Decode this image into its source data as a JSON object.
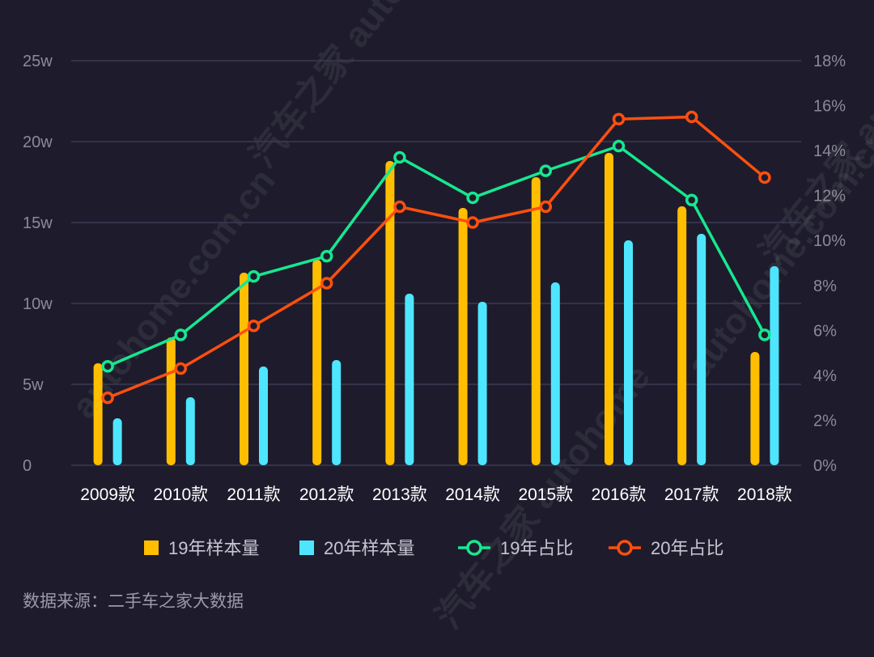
{
  "chart_data": {
    "type": "bar",
    "categories": [
      "2009款",
      "2010款",
      "2011款",
      "2012款",
      "2013款",
      "2014款",
      "2015款",
      "2016款",
      "2017款",
      "2018款"
    ],
    "y_left": {
      "ticks": [
        "0",
        "5w",
        "10w",
        "15w",
        "20w",
        "25w"
      ],
      "range": [
        0,
        25
      ]
    },
    "y_right": {
      "ticks": [
        "0%",
        "2%",
        "4%",
        "6%",
        "8%",
        "10%",
        "12%",
        "14%",
        "16%",
        "18%"
      ],
      "range": [
        0,
        18
      ]
    },
    "grid": true,
    "legend_position": "bottom",
    "series": [
      {
        "name": "19年样本量",
        "type": "bar",
        "axis": "left",
        "color": "#ffbe00",
        "values": [
          6.3,
          7.9,
          11.9,
          12.7,
          18.8,
          15.9,
          17.8,
          19.3,
          16.0,
          7.0
        ]
      },
      {
        "name": "20年样本量",
        "type": "bar",
        "axis": "left",
        "color": "#4ee6ff",
        "values": [
          2.9,
          4.2,
          6.1,
          6.5,
          10.6,
          10.1,
          11.3,
          13.9,
          14.3,
          12.3
        ]
      },
      {
        "name": "19年占比",
        "type": "line",
        "axis": "right",
        "color": "#16e890",
        "values": [
          4.4,
          5.8,
          8.4,
          9.3,
          13.7,
          11.9,
          13.1,
          14.2,
          11.8,
          5.8
        ]
      },
      {
        "name": "20年占比",
        "type": "line",
        "axis": "right",
        "color": "#ff4f0e",
        "values": [
          3.0,
          4.3,
          6.2,
          8.1,
          11.5,
          10.8,
          11.5,
          15.4,
          15.5,
          12.8
        ]
      }
    ]
  },
  "source_note": "数据来源：二手车之家大数据",
  "watermarks": [
    "汽车之家 autohome",
    "autohome.com.cn",
    "汽车之家 autohome",
    "autohome.com.cn",
    "汽车之家 autohome.com.cn"
  ],
  "colors": {
    "background": "#1e1c2c",
    "grid": "#3c3a52"
  }
}
